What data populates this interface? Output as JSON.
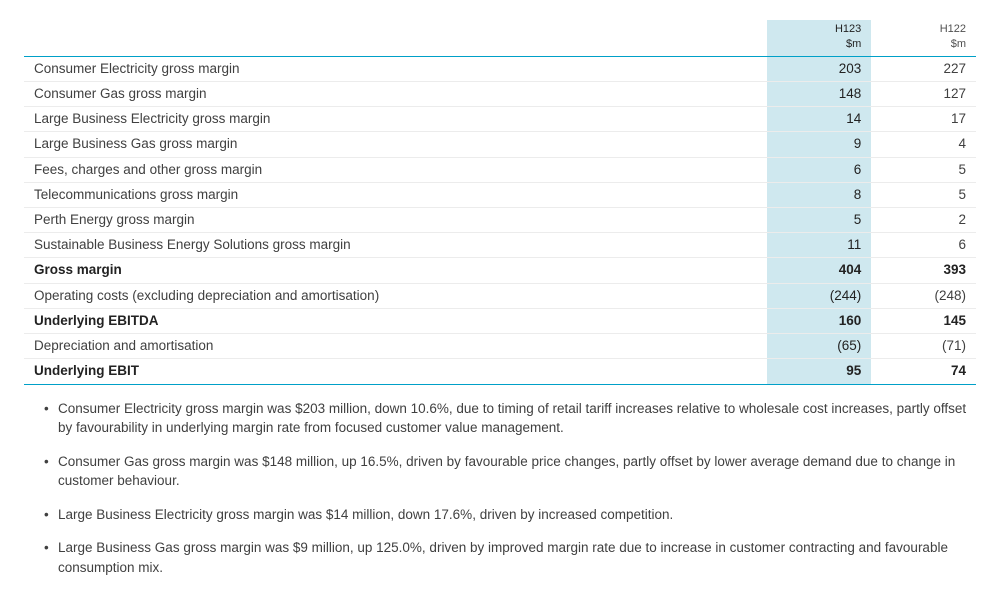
{
  "table": {
    "columns": [
      {
        "label": "H123",
        "unit": "$m",
        "highlight": true
      },
      {
        "label": "H122",
        "unit": "$m",
        "highlight": false
      }
    ],
    "rows": [
      {
        "label": "Consumer Electricity gross margin",
        "values": [
          "203",
          "227"
        ]
      },
      {
        "label": "Consumer Gas gross margin",
        "values": [
          "148",
          "127"
        ]
      },
      {
        "label": "Large Business Electricity gross margin",
        "values": [
          "14",
          "17"
        ]
      },
      {
        "label": "Large Business Gas gross margin",
        "values": [
          "9",
          "4"
        ]
      },
      {
        "label": "Fees, charges and other gross margin",
        "values": [
          "6",
          "5"
        ]
      },
      {
        "label": "Telecommunications gross margin",
        "values": [
          "8",
          "5"
        ]
      },
      {
        "label": "Perth Energy gross margin",
        "values": [
          "5",
          "2"
        ]
      },
      {
        "label": "Sustainable Business Energy Solutions gross margin",
        "values": [
          "11",
          "6"
        ]
      },
      {
        "label": "Gross margin",
        "values": [
          "404",
          "393"
        ],
        "subtotal": true,
        "ruleTop": true
      },
      {
        "label": "Operating costs (excluding depreciation and amortisation)",
        "values": [
          "(244)",
          "(248)"
        ]
      },
      {
        "label": "Underlying EBITDA",
        "values": [
          "160",
          "145"
        ],
        "subtotal": true,
        "ruleTop": true
      },
      {
        "label": "Depreciation and amortisation",
        "values": [
          "(65)",
          "(71)"
        ]
      },
      {
        "label": "Underlying EBIT",
        "values": [
          "95",
          "74"
        ],
        "subtotal": true,
        "ruleTop": true,
        "ruleBottom": true
      }
    ]
  },
  "notes": [
    "Consumer Electricity gross margin was $203 million, down 10.6%, due to timing of retail tariff increases relative to wholesale cost increases, partly offset by favourability in underlying margin rate from focused customer value management.",
    "Consumer Gas gross margin was $148 million, up 16.5%, driven by favourable price changes, partly offset by lower average demand due to change in customer behaviour.",
    "Large Business Electricity gross margin was $14 million, down 17.6%, driven by increased competition.",
    "Large Business Gas gross margin was $9 million, up 125.0%, driven by improved margin rate due to increase in customer contracting and favourable consumption mix."
  ],
  "style": {
    "accent": "#00a0c8",
    "highlight_bg": "#cfe8ef",
    "row_border": "#ececec",
    "text": "#404040",
    "bg": "#ffffff"
  }
}
